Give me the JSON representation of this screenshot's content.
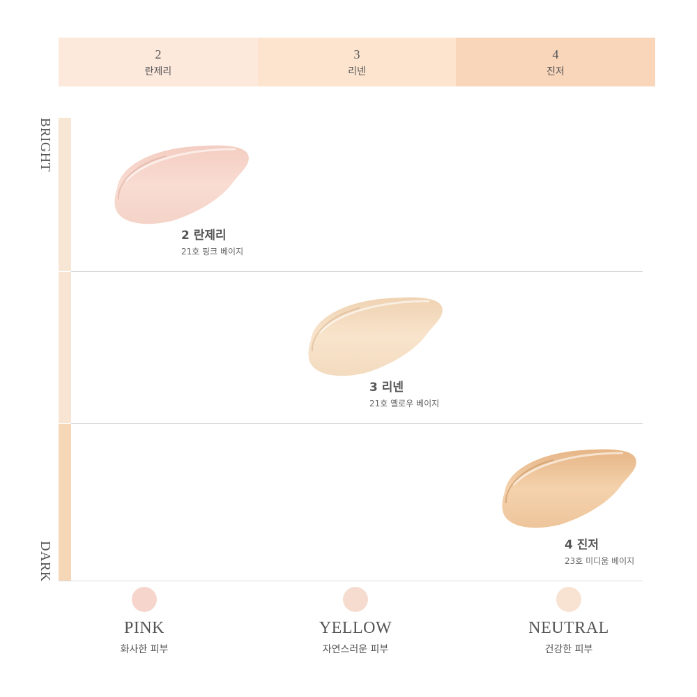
{
  "header": [
    {
      "number": "2",
      "name": "란제리",
      "color": "#fde8dc"
    },
    {
      "number": "3",
      "name": "리넨",
      "color": "#fde4ce"
    },
    {
      "number": "4",
      "name": "진저",
      "color": "#f9d5ba"
    }
  ],
  "axis": {
    "top": "BRIGHT",
    "bottom": "DARK"
  },
  "rows": [
    {
      "title": "2 란제리",
      "subtitle": "21호 핑크 베이지",
      "swatch_color": "#f8d5ca",
      "bar_color": "#f7e5d3"
    },
    {
      "title": "3 리넨",
      "subtitle": "21호 옐로우 베이지",
      "swatch_color": "#f6e0c4",
      "bar_color": "#f8e3d2"
    },
    {
      "title": "4 진저",
      "subtitle": "23호 미디움 베이지",
      "swatch_color": "#f1cda6",
      "bar_color": "#f5d7b7"
    }
  ],
  "tones": [
    {
      "name": "PINK",
      "desc": "화사한 피부",
      "color": "#f6d6cc"
    },
    {
      "name": "YELLOW",
      "desc": "자연스러운 피부",
      "color": "#f5dccf"
    },
    {
      "name": "NEUTRAL",
      "desc": "건강한 피부",
      "color": "#f8e2d2"
    }
  ]
}
